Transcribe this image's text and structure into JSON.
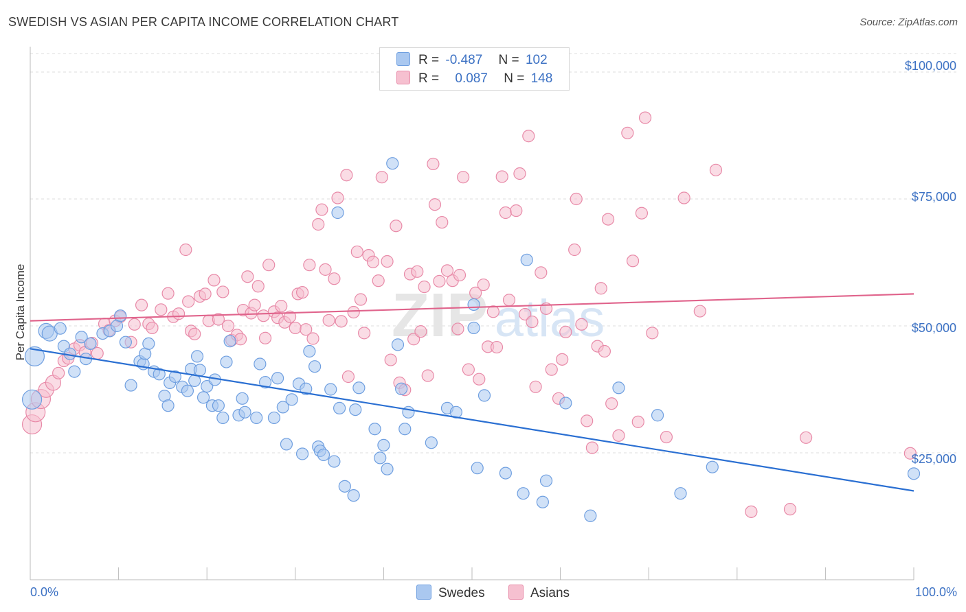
{
  "title": "SWEDISH VS ASIAN PER CAPITA INCOME CORRELATION CHART",
  "source": "Source: ZipAtlas.com",
  "watermark": {
    "zip": "ZIP",
    "atlas": "atlas"
  },
  "colors": {
    "blue": "#3d72c4",
    "blue_fill": "#aac8f0",
    "blue_line": "#2a6fd2",
    "pink": "#e88aa8",
    "pink_fill": "#f6c0d0",
    "pink_line": "#e0648c",
    "grid": "#dddddd"
  },
  "legend": {
    "rows": [
      {
        "r_label": "R =",
        "r_value": "-0.487",
        "n_label": "N =",
        "n_value": "102",
        "color": "#aac8f0",
        "border": "#6f9fe0"
      },
      {
        "r_label": "R =",
        "r_value": "0.087",
        "n_label": "N =",
        "n_value": "148",
        "color": "#f6c0d0",
        "border": "#e88aa8"
      }
    ],
    "series_names": [
      "Swedes",
      "Asians"
    ]
  },
  "chart_data": {
    "type": "scatter",
    "xlabel": "",
    "ylabel": "Per Capita Income",
    "xlim": [
      0,
      100
    ],
    "ylim": [
      0,
      105000
    ],
    "x_tick_labels": [
      "0.0%",
      "100.0%"
    ],
    "y_ticks": [
      25000,
      50000,
      75000,
      100000
    ],
    "y_tick_labels": [
      "$25,000",
      "$50,000",
      "$75,000",
      "$100,000"
    ],
    "grid": true,
    "legend_position": "top-center",
    "series": [
      {
        "name": "Swedes",
        "color": "#6f9fe0",
        "trend": {
          "x": [
            0,
            100
          ],
          "y": [
            45500,
            17500
          ]
        },
        "points": [
          [
            0.2,
            35500
          ],
          [
            0.5,
            44000
          ],
          [
            1.8,
            49000
          ],
          [
            2.2,
            48500
          ],
          [
            3.4,
            49500
          ],
          [
            3.8,
            46000
          ],
          [
            4.5,
            44500
          ],
          [
            5.8,
            47800
          ],
          [
            5.0,
            41000
          ],
          [
            6.3,
            43500
          ],
          [
            6.8,
            46500
          ],
          [
            8.2,
            48500
          ],
          [
            9.0,
            49000
          ],
          [
            9.8,
            50000
          ],
          [
            10.2,
            52000
          ],
          [
            10.8,
            46800
          ],
          [
            11.4,
            38300
          ],
          [
            12.4,
            43000
          ],
          [
            12.8,
            42500
          ],
          [
            13.0,
            44500
          ],
          [
            13.4,
            46500
          ],
          [
            14.0,
            41000
          ],
          [
            14.6,
            40500
          ],
          [
            15.2,
            36200
          ],
          [
            15.6,
            34300
          ],
          [
            15.8,
            38800
          ],
          [
            16.4,
            40000
          ],
          [
            17.2,
            38000
          ],
          [
            17.8,
            37200
          ],
          [
            18.2,
            41500
          ],
          [
            18.6,
            39200
          ],
          [
            18.9,
            44000
          ],
          [
            19.2,
            41300
          ],
          [
            19.6,
            35900
          ],
          [
            20.0,
            38100
          ],
          [
            20.6,
            34300
          ],
          [
            20.9,
            39400
          ],
          [
            21.3,
            34300
          ],
          [
            21.8,
            31900
          ],
          [
            22.2,
            42900
          ],
          [
            22.6,
            47000
          ],
          [
            23.6,
            32400
          ],
          [
            24.0,
            35700
          ],
          [
            24.3,
            33000
          ],
          [
            25.6,
            31900
          ],
          [
            26.0,
            42500
          ],
          [
            26.6,
            38900
          ],
          [
            27.6,
            31900
          ],
          [
            28.0,
            39700
          ],
          [
            28.6,
            34000
          ],
          [
            29.0,
            26700
          ],
          [
            29.6,
            35500
          ],
          [
            30.4,
            38600
          ],
          [
            30.8,
            24800
          ],
          [
            31.2,
            37600
          ],
          [
            31.6,
            45000
          ],
          [
            32.2,
            42000
          ],
          [
            32.6,
            26200
          ],
          [
            32.8,
            25400
          ],
          [
            33.2,
            24600
          ],
          [
            34.0,
            37500
          ],
          [
            34.4,
            23300
          ],
          [
            34.8,
            72300
          ],
          [
            35.0,
            33800
          ],
          [
            35.6,
            18400
          ],
          [
            36.6,
            16600
          ],
          [
            36.8,
            33500
          ],
          [
            37.2,
            37800
          ],
          [
            39.0,
            29700
          ],
          [
            39.6,
            24000
          ],
          [
            40.0,
            26500
          ],
          [
            40.4,
            21800
          ],
          [
            41.0,
            82000
          ],
          [
            41.6,
            46300
          ],
          [
            42.0,
            37600
          ],
          [
            42.4,
            29700
          ],
          [
            42.8,
            33000
          ],
          [
            45.4,
            27000
          ],
          [
            47.2,
            33800
          ],
          [
            48.2,
            33000
          ],
          [
            50.2,
            54200
          ],
          [
            50.2,
            49600
          ],
          [
            50.6,
            22000
          ],
          [
            51.4,
            36300
          ],
          [
            53.8,
            21000
          ],
          [
            55.8,
            17000
          ],
          [
            56.2,
            63000
          ],
          [
            58.0,
            15300
          ],
          [
            58.4,
            19500
          ],
          [
            60.6,
            34800
          ],
          [
            63.4,
            12600
          ],
          [
            66.6,
            37800
          ],
          [
            71.0,
            32400
          ],
          [
            73.6,
            17000
          ],
          [
            77.2,
            22200
          ],
          [
            100.0,
            20900
          ]
        ]
      },
      {
        "name": "Asians",
        "color": "#e88aa8",
        "trend": {
          "x": [
            0,
            100
          ],
          "y": [
            51000,
            56300
          ]
        },
        "points": [
          [
            0.2,
            30600
          ],
          [
            0.6,
            33000
          ],
          [
            1.2,
            35600
          ],
          [
            1.8,
            37400
          ],
          [
            2.6,
            38800
          ],
          [
            3.2,
            40700
          ],
          [
            3.8,
            43100
          ],
          [
            4.3,
            43600
          ],
          [
            5.0,
            45500
          ],
          [
            5.6,
            46200
          ],
          [
            6.2,
            44800
          ],
          [
            7.0,
            46600
          ],
          [
            7.6,
            44600
          ],
          [
            8.4,
            50400
          ],
          [
            8.9,
            49100
          ],
          [
            9.6,
            51000
          ],
          [
            10.2,
            51800
          ],
          [
            11.4,
            46800
          ],
          [
            11.8,
            50300
          ],
          [
            12.6,
            54100
          ],
          [
            13.4,
            50400
          ],
          [
            13.8,
            49600
          ],
          [
            14.8,
            53200
          ],
          [
            15.6,
            56400
          ],
          [
            16.2,
            51800
          ],
          [
            16.8,
            52400
          ],
          [
            17.6,
            65000
          ],
          [
            17.9,
            54800
          ],
          [
            18.2,
            49000
          ],
          [
            18.6,
            48400
          ],
          [
            19.2,
            55800
          ],
          [
            19.8,
            56300
          ],
          [
            20.2,
            51000
          ],
          [
            20.8,
            59000
          ],
          [
            21.3,
            51300
          ],
          [
            21.8,
            56700
          ],
          [
            22.4,
            50000
          ],
          [
            22.8,
            47200
          ],
          [
            23.4,
            48200
          ],
          [
            23.8,
            47400
          ],
          [
            24.1,
            53100
          ],
          [
            24.6,
            59700
          ],
          [
            25.0,
            52500
          ],
          [
            25.4,
            54100
          ],
          [
            25.8,
            57800
          ],
          [
            26.4,
            52000
          ],
          [
            26.6,
            47600
          ],
          [
            27.0,
            62000
          ],
          [
            27.6,
            52800
          ],
          [
            28.0,
            51600
          ],
          [
            28.4,
            53900
          ],
          [
            28.8,
            50700
          ],
          [
            29.4,
            51800
          ],
          [
            30.0,
            49600
          ],
          [
            30.3,
            56300
          ],
          [
            30.8,
            56600
          ],
          [
            31.2,
            49300
          ],
          [
            31.6,
            62000
          ],
          [
            32.0,
            47500
          ],
          [
            32.6,
            70000
          ],
          [
            33.0,
            72900
          ],
          [
            33.4,
            61100
          ],
          [
            33.8,
            51100
          ],
          [
            34.4,
            59300
          ],
          [
            34.8,
            75200
          ],
          [
            35.2,
            50900
          ],
          [
            35.8,
            79700
          ],
          [
            36.0,
            40000
          ],
          [
            36.6,
            52700
          ],
          [
            37.0,
            64600
          ],
          [
            37.4,
            55200
          ],
          [
            37.8,
            48600
          ],
          [
            38.3,
            63900
          ],
          [
            38.8,
            62600
          ],
          [
            39.4,
            58900
          ],
          [
            39.8,
            79300
          ],
          [
            40.4,
            62700
          ],
          [
            40.8,
            43300
          ],
          [
            41.4,
            69700
          ],
          [
            41.8,
            38800
          ],
          [
            42.4,
            37400
          ],
          [
            43.0,
            60200
          ],
          [
            43.4,
            47400
          ],
          [
            43.8,
            60700
          ],
          [
            44.2,
            48900
          ],
          [
            44.6,
            57700
          ],
          [
            45.0,
            40200
          ],
          [
            45.6,
            81900
          ],
          [
            45.8,
            73900
          ],
          [
            46.3,
            58800
          ],
          [
            46.6,
            70400
          ],
          [
            47.2,
            60900
          ],
          [
            47.8,
            58900
          ],
          [
            48.4,
            49400
          ],
          [
            48.6,
            60000
          ],
          [
            49.0,
            79300
          ],
          [
            49.6,
            41400
          ],
          [
            50.4,
            56500
          ],
          [
            50.8,
            39500
          ],
          [
            51.3,
            58100
          ],
          [
            51.8,
            45900
          ],
          [
            52.4,
            52800
          ],
          [
            52.8,
            45800
          ],
          [
            53.4,
            79400
          ],
          [
            53.8,
            72300
          ],
          [
            54.2,
            55100
          ],
          [
            55.0,
            72700
          ],
          [
            55.4,
            80000
          ],
          [
            56.0,
            52300
          ],
          [
            56.4,
            87400
          ],
          [
            56.8,
            50800
          ],
          [
            57.2,
            38000
          ],
          [
            57.8,
            60500
          ],
          [
            58.4,
            53400
          ],
          [
            59.0,
            41400
          ],
          [
            59.8,
            35700
          ],
          [
            60.2,
            43400
          ],
          [
            60.6,
            48800
          ],
          [
            61.6,
            65000
          ],
          [
            61.8,
            75000
          ],
          [
            62.4,
            50300
          ],
          [
            63.0,
            31300
          ],
          [
            63.6,
            26000
          ],
          [
            64.2,
            46000
          ],
          [
            64.6,
            57400
          ],
          [
            65.0,
            45000
          ],
          [
            65.4,
            71000
          ],
          [
            65.8,
            34700
          ],
          [
            66.6,
            28400
          ],
          [
            67.6,
            88000
          ],
          [
            68.2,
            62800
          ],
          [
            68.8,
            31100
          ],
          [
            69.2,
            72200
          ],
          [
            69.6,
            91000
          ],
          [
            70.4,
            48600
          ],
          [
            72.0,
            28100
          ],
          [
            74.0,
            75200
          ],
          [
            75.8,
            52900
          ],
          [
            77.6,
            80700
          ],
          [
            81.6,
            13400
          ],
          [
            86.0,
            13900
          ],
          [
            87.8,
            28000
          ],
          [
            99.6,
            24900
          ]
        ]
      }
    ]
  }
}
